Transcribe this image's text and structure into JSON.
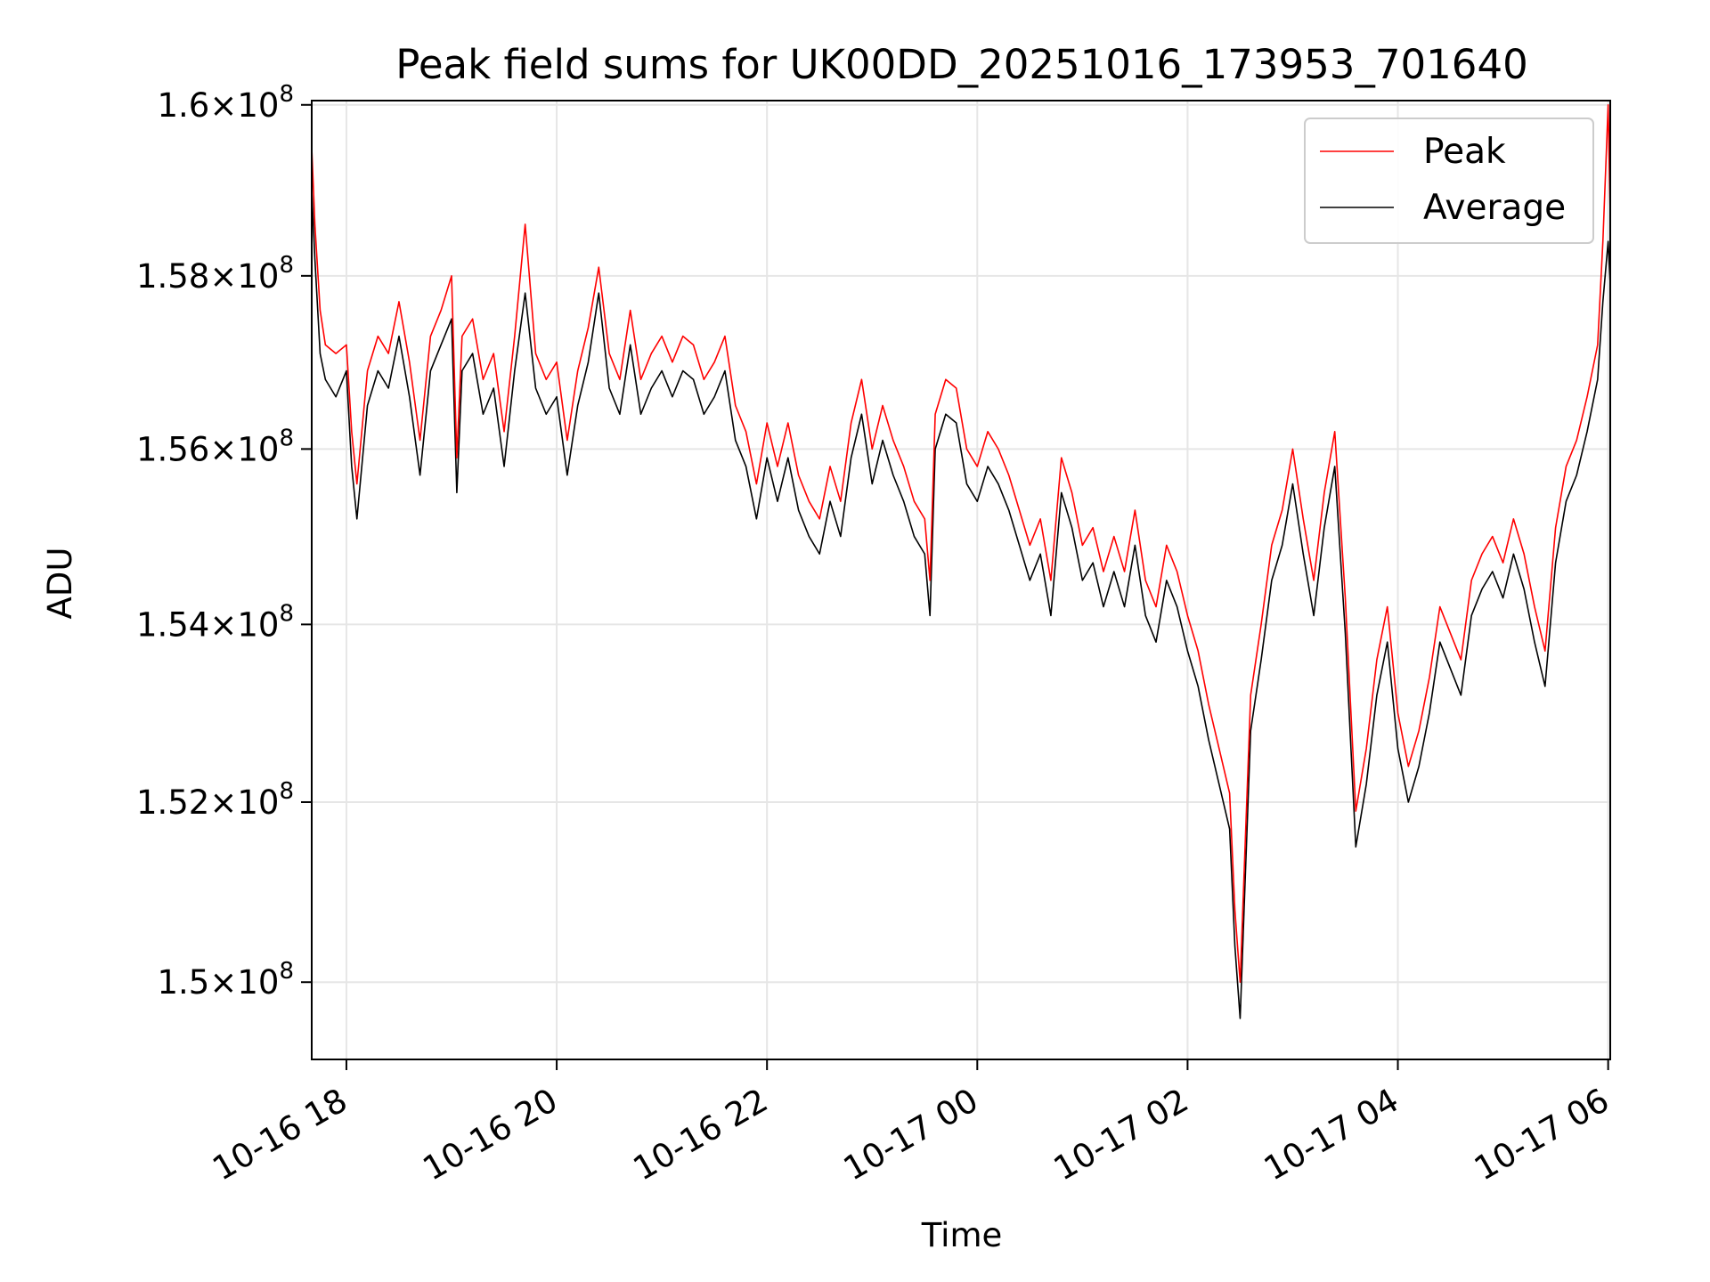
{
  "chart_data": {
    "type": "line",
    "title": "Peak field sums for UK00DD_20251016_173953_701640",
    "xlabel": "Time",
    "ylabel": "ADU",
    "xlim_hours": [
      17.67,
      30.02
    ],
    "ylim": [
      149150000,
      160050000
    ],
    "y_scale": "log",
    "grid": true,
    "legend_position": "upper right",
    "colors": {
      "peak": "#ff0000",
      "average": "#000000",
      "grid": "#e6e6e6",
      "axes": "#000000"
    },
    "x_ticks": [
      {
        "value": 18,
        "label": "10-16 18"
      },
      {
        "value": 20,
        "label": "10-16 20"
      },
      {
        "value": 22,
        "label": "10-16 22"
      },
      {
        "value": 24,
        "label": "10-17 00"
      },
      {
        "value": 26,
        "label": "10-17 02"
      },
      {
        "value": 28,
        "label": "10-17 04"
      },
      {
        "value": 30,
        "label": "10-17 06"
      }
    ],
    "y_ticks": [
      {
        "value": 150000000,
        "mantissa": "1.5",
        "base": "10",
        "exp": "8"
      },
      {
        "value": 152000000,
        "mantissa": "1.52",
        "base": "10",
        "exp": "8"
      },
      {
        "value": 154000000,
        "mantissa": "1.54",
        "base": "10",
        "exp": "8"
      },
      {
        "value": 156000000,
        "mantissa": "1.56",
        "base": "10",
        "exp": "8"
      },
      {
        "value": 158000000,
        "mantissa": "1.58",
        "base": "10",
        "exp": "8"
      },
      {
        "value": 160000000,
        "mantissa": "1.6",
        "base": "10",
        "exp": "8"
      }
    ],
    "legend": [
      {
        "key": "peak",
        "label": "Peak"
      },
      {
        "key": "average",
        "label": "Average"
      }
    ],
    "series": [
      {
        "name": "Average",
        "color": "#000000",
        "points": [
          [
            17.67,
            159000000
          ],
          [
            17.7,
            158200000
          ],
          [
            17.75,
            157100000
          ],
          [
            17.8,
            156800000
          ],
          [
            17.9,
            156600000
          ],
          [
            18.0,
            156900000
          ],
          [
            18.05,
            155800000
          ],
          [
            18.1,
            155200000
          ],
          [
            18.2,
            156500000
          ],
          [
            18.3,
            156900000
          ],
          [
            18.4,
            156700000
          ],
          [
            18.5,
            157300000
          ],
          [
            18.6,
            156600000
          ],
          [
            18.7,
            155700000
          ],
          [
            18.8,
            156900000
          ],
          [
            18.9,
            157200000
          ],
          [
            19.0,
            157500000
          ],
          [
            19.05,
            155500000
          ],
          [
            19.1,
            156900000
          ],
          [
            19.2,
            157100000
          ],
          [
            19.3,
            156400000
          ],
          [
            19.4,
            156700000
          ],
          [
            19.5,
            155800000
          ],
          [
            19.6,
            156900000
          ],
          [
            19.7,
            157800000
          ],
          [
            19.8,
            156700000
          ],
          [
            19.9,
            156400000
          ],
          [
            20.0,
            156600000
          ],
          [
            20.1,
            155700000
          ],
          [
            20.2,
            156500000
          ],
          [
            20.3,
            157000000
          ],
          [
            20.4,
            157800000
          ],
          [
            20.5,
            156700000
          ],
          [
            20.6,
            156400000
          ],
          [
            20.7,
            157200000
          ],
          [
            20.8,
            156400000
          ],
          [
            20.9,
            156700000
          ],
          [
            21.0,
            156900000
          ],
          [
            21.1,
            156600000
          ],
          [
            21.2,
            156900000
          ],
          [
            21.3,
            156800000
          ],
          [
            21.4,
            156400000
          ],
          [
            21.5,
            156600000
          ],
          [
            21.6,
            156900000
          ],
          [
            21.7,
            156100000
          ],
          [
            21.8,
            155800000
          ],
          [
            21.9,
            155200000
          ],
          [
            22.0,
            155900000
          ],
          [
            22.1,
            155400000
          ],
          [
            22.2,
            155900000
          ],
          [
            22.3,
            155300000
          ],
          [
            22.4,
            155000000
          ],
          [
            22.5,
            154800000
          ],
          [
            22.6,
            155400000
          ],
          [
            22.7,
            155000000
          ],
          [
            22.8,
            155900000
          ],
          [
            22.9,
            156400000
          ],
          [
            23.0,
            155600000
          ],
          [
            23.1,
            156100000
          ],
          [
            23.2,
            155700000
          ],
          [
            23.3,
            155400000
          ],
          [
            23.4,
            155000000
          ],
          [
            23.5,
            154800000
          ],
          [
            23.55,
            154100000
          ],
          [
            23.6,
            156000000
          ],
          [
            23.7,
            156400000
          ],
          [
            23.8,
            156300000
          ],
          [
            23.9,
            155600000
          ],
          [
            24.0,
            155400000
          ],
          [
            24.1,
            155800000
          ],
          [
            24.2,
            155600000
          ],
          [
            24.3,
            155300000
          ],
          [
            24.4,
            154900000
          ],
          [
            24.5,
            154500000
          ],
          [
            24.6,
            154800000
          ],
          [
            24.7,
            154100000
          ],
          [
            24.8,
            155500000
          ],
          [
            24.9,
            155100000
          ],
          [
            25.0,
            154500000
          ],
          [
            25.1,
            154700000
          ],
          [
            25.2,
            154200000
          ],
          [
            25.3,
            154600000
          ],
          [
            25.4,
            154200000
          ],
          [
            25.5,
            154900000
          ],
          [
            25.6,
            154100000
          ],
          [
            25.7,
            153800000
          ],
          [
            25.8,
            154500000
          ],
          [
            25.9,
            154200000
          ],
          [
            26.0,
            153700000
          ],
          [
            26.1,
            153300000
          ],
          [
            26.2,
            152700000
          ],
          [
            26.3,
            152200000
          ],
          [
            26.4,
            151700000
          ],
          [
            26.45,
            150400000
          ],
          [
            26.5,
            149600000
          ],
          [
            26.55,
            151200000
          ],
          [
            26.6,
            152800000
          ],
          [
            26.7,
            153600000
          ],
          [
            26.8,
            154500000
          ],
          [
            26.9,
            154900000
          ],
          [
            27.0,
            155600000
          ],
          [
            27.1,
            154800000
          ],
          [
            27.2,
            154100000
          ],
          [
            27.3,
            155100000
          ],
          [
            27.4,
            155800000
          ],
          [
            27.5,
            153900000
          ],
          [
            27.6,
            151500000
          ],
          [
            27.7,
            152200000
          ],
          [
            27.8,
            153200000
          ],
          [
            27.9,
            153800000
          ],
          [
            28.0,
            152600000
          ],
          [
            28.1,
            152000000
          ],
          [
            28.2,
            152400000
          ],
          [
            28.3,
            153000000
          ],
          [
            28.4,
            153800000
          ],
          [
            28.5,
            153500000
          ],
          [
            28.6,
            153200000
          ],
          [
            28.7,
            154100000
          ],
          [
            28.8,
            154400000
          ],
          [
            28.9,
            154600000
          ],
          [
            29.0,
            154300000
          ],
          [
            29.1,
            154800000
          ],
          [
            29.2,
            154400000
          ],
          [
            29.3,
            153800000
          ],
          [
            29.4,
            153300000
          ],
          [
            29.5,
            154700000
          ],
          [
            29.6,
            155400000
          ],
          [
            29.7,
            155700000
          ],
          [
            29.8,
            156200000
          ],
          [
            29.9,
            156800000
          ],
          [
            29.95,
            157700000
          ],
          [
            30.0,
            158400000
          ],
          [
            30.02,
            157900000
          ]
        ]
      },
      {
        "name": "Peak",
        "color": "#ff0000",
        "points": [
          [
            17.67,
            159500000
          ],
          [
            17.7,
            158600000
          ],
          [
            17.75,
            157600000
          ],
          [
            17.8,
            157200000
          ],
          [
            17.9,
            157100000
          ],
          [
            18.0,
            157200000
          ],
          [
            18.05,
            156200000
          ],
          [
            18.1,
            155600000
          ],
          [
            18.2,
            156900000
          ],
          [
            18.3,
            157300000
          ],
          [
            18.4,
            157100000
          ],
          [
            18.5,
            157700000
          ],
          [
            18.6,
            157000000
          ],
          [
            18.7,
            156100000
          ],
          [
            18.8,
            157300000
          ],
          [
            18.9,
            157600000
          ],
          [
            19.0,
            158000000
          ],
          [
            19.05,
            155900000
          ],
          [
            19.1,
            157300000
          ],
          [
            19.2,
            157500000
          ],
          [
            19.3,
            156800000
          ],
          [
            19.4,
            157100000
          ],
          [
            19.5,
            156200000
          ],
          [
            19.6,
            157300000
          ],
          [
            19.7,
            158600000
          ],
          [
            19.8,
            157100000
          ],
          [
            19.9,
            156800000
          ],
          [
            20.0,
            157000000
          ],
          [
            20.1,
            156100000
          ],
          [
            20.2,
            156900000
          ],
          [
            20.3,
            157400000
          ],
          [
            20.4,
            158100000
          ],
          [
            20.5,
            157100000
          ],
          [
            20.6,
            156800000
          ],
          [
            20.7,
            157600000
          ],
          [
            20.8,
            156800000
          ],
          [
            20.9,
            157100000
          ],
          [
            21.0,
            157300000
          ],
          [
            21.1,
            157000000
          ],
          [
            21.2,
            157300000
          ],
          [
            21.3,
            157200000
          ],
          [
            21.4,
            156800000
          ],
          [
            21.5,
            157000000
          ],
          [
            21.6,
            157300000
          ],
          [
            21.7,
            156500000
          ],
          [
            21.8,
            156200000
          ],
          [
            21.9,
            155600000
          ],
          [
            22.0,
            156300000
          ],
          [
            22.1,
            155800000
          ],
          [
            22.2,
            156300000
          ],
          [
            22.3,
            155700000
          ],
          [
            22.4,
            155400000
          ],
          [
            22.5,
            155200000
          ],
          [
            22.6,
            155800000
          ],
          [
            22.7,
            155400000
          ],
          [
            22.8,
            156300000
          ],
          [
            22.9,
            156800000
          ],
          [
            23.0,
            156000000
          ],
          [
            23.1,
            156500000
          ],
          [
            23.2,
            156100000
          ],
          [
            23.3,
            155800000
          ],
          [
            23.4,
            155400000
          ],
          [
            23.5,
            155200000
          ],
          [
            23.55,
            154500000
          ],
          [
            23.6,
            156400000
          ],
          [
            23.7,
            156800000
          ],
          [
            23.8,
            156700000
          ],
          [
            23.9,
            156000000
          ],
          [
            24.0,
            155800000
          ],
          [
            24.1,
            156200000
          ],
          [
            24.2,
            156000000
          ],
          [
            24.3,
            155700000
          ],
          [
            24.4,
            155300000
          ],
          [
            24.5,
            154900000
          ],
          [
            24.6,
            155200000
          ],
          [
            24.7,
            154500000
          ],
          [
            24.8,
            155900000
          ],
          [
            24.9,
            155500000
          ],
          [
            25.0,
            154900000
          ],
          [
            25.1,
            155100000
          ],
          [
            25.2,
            154600000
          ],
          [
            25.3,
            155000000
          ],
          [
            25.4,
            154600000
          ],
          [
            25.5,
            155300000
          ],
          [
            25.6,
            154500000
          ],
          [
            25.7,
            154200000
          ],
          [
            25.8,
            154900000
          ],
          [
            25.9,
            154600000
          ],
          [
            26.0,
            154100000
          ],
          [
            26.1,
            153700000
          ],
          [
            26.2,
            153100000
          ],
          [
            26.3,
            152600000
          ],
          [
            26.4,
            152100000
          ],
          [
            26.45,
            150800000
          ],
          [
            26.5,
            150000000
          ],
          [
            26.55,
            151600000
          ],
          [
            26.6,
            153200000
          ],
          [
            26.7,
            154000000
          ],
          [
            26.8,
            154900000
          ],
          [
            26.9,
            155300000
          ],
          [
            27.0,
            156000000
          ],
          [
            27.1,
            155200000
          ],
          [
            27.2,
            154500000
          ],
          [
            27.3,
            155500000
          ],
          [
            27.4,
            156200000
          ],
          [
            27.5,
            154300000
          ],
          [
            27.6,
            151900000
          ],
          [
            27.7,
            152600000
          ],
          [
            27.8,
            153600000
          ],
          [
            27.9,
            154200000
          ],
          [
            28.0,
            153000000
          ],
          [
            28.1,
            152400000
          ],
          [
            28.2,
            152800000
          ],
          [
            28.3,
            153400000
          ],
          [
            28.4,
            154200000
          ],
          [
            28.5,
            153900000
          ],
          [
            28.6,
            153600000
          ],
          [
            28.7,
            154500000
          ],
          [
            28.8,
            154800000
          ],
          [
            28.9,
            155000000
          ],
          [
            29.0,
            154700000
          ],
          [
            29.1,
            155200000
          ],
          [
            29.2,
            154800000
          ],
          [
            29.3,
            154200000
          ],
          [
            29.4,
            153700000
          ],
          [
            29.5,
            155100000
          ],
          [
            29.6,
            155800000
          ],
          [
            29.7,
            156100000
          ],
          [
            29.8,
            156600000
          ],
          [
            29.9,
            157200000
          ],
          [
            29.95,
            158400000
          ],
          [
            30.0,
            160000000
          ],
          [
            30.02,
            158700000
          ]
        ]
      }
    ]
  }
}
